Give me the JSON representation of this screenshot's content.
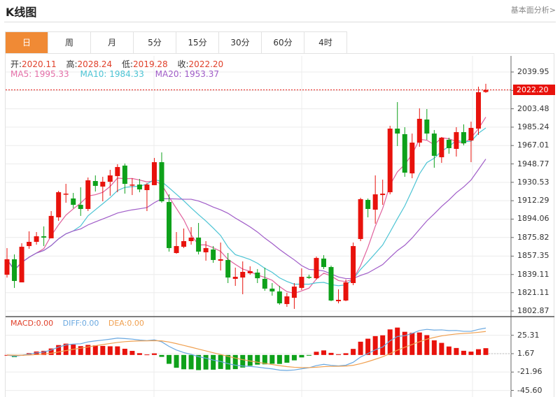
{
  "header": {
    "title": "K线图",
    "link": "基本面分析>"
  },
  "tabs": [
    {
      "label": "日",
      "active": true
    },
    {
      "label": "周"
    },
    {
      "label": "月"
    },
    {
      "label": "5分"
    },
    {
      "label": "15分"
    },
    {
      "label": "30分"
    },
    {
      "label": "60分"
    },
    {
      "label": "4时"
    }
  ],
  "ohlc_info": {
    "open_label": "开:",
    "open": "2020.11",
    "high_label": "高:",
    "high": "2028.24",
    "low_label": "低:",
    "low": "2019.28",
    "close_label": "收:",
    "close": "2022.20"
  },
  "ma_info": {
    "ma5": "MA5: 1995.33",
    "ma10": "MA10: 1984.33",
    "ma20": "MA20: 1953.37"
  },
  "macd_info": {
    "macd": "MACD:0.00",
    "diff": "DIFF:0.00",
    "dea": "DEA:0.00"
  },
  "colors": {
    "accent": "#f08a35",
    "up": "#e8120c",
    "down": "#0ea11a",
    "ma5": "#e0609c",
    "ma10": "#4cc4d4",
    "ma20": "#a05cc8",
    "diff": "#6aa8e0",
    "dea": "#f0a050"
  },
  "chart_data": {
    "type": "candlestick",
    "price_axis_ticks": [
      "2039.95",
      "2021.71",
      "2003.48",
      "1985.24",
      "1967.01",
      "1948.77",
      "1930.53",
      "1912.29",
      "1894.06",
      "1875.82",
      "1857.35",
      "1839.11",
      "1821.11",
      "1802.87"
    ],
    "current_price": "2022.20",
    "macd_axis_ticks": [
      "25.31",
      "1.67",
      "-21.96",
      "-45.60"
    ],
    "ylim": [
      1802.87,
      2039.95
    ],
    "macd_ylim": [
      -45.6,
      25.31
    ],
    "ohlc": [
      [
        1838.9,
        1865.3,
        1836.1,
        1854.2
      ],
      [
        1854.2,
        1859.0,
        1825.8,
        1832.7
      ],
      [
        1831.3,
        1870.1,
        1831.3,
        1866.6
      ],
      [
        1867.3,
        1881.9,
        1864.6,
        1871.5
      ],
      [
        1871.5,
        1881.2,
        1868.7,
        1877.0
      ],
      [
        1877.0,
        1886.8,
        1867.3,
        1875.7
      ],
      [
        1875.0,
        1902.0,
        1875.0,
        1897.2
      ],
      [
        1895.8,
        1922.1,
        1892.3,
        1920.7
      ],
      [
        1918.6,
        1929.0,
        1910.3,
        1919.3
      ],
      [
        1914.5,
        1920.0,
        1904.8,
        1908.2
      ],
      [
        1908.2,
        1925.6,
        1897.2,
        1904.1
      ],
      [
        1904.1,
        1935.3,
        1902.0,
        1932.5
      ],
      [
        1931.8,
        1937.4,
        1921.4,
        1927.0
      ],
      [
        1926.3,
        1936.0,
        1911.7,
        1931.1
      ],
      [
        1931.1,
        1942.9,
        1917.2,
        1937.4
      ],
      [
        1936.7,
        1948.5,
        1920.7,
        1945.7
      ],
      [
        1947.1,
        1949.2,
        1919.3,
        1929.0
      ],
      [
        1927.7,
        1934.6,
        1917.9,
        1928.3
      ],
      [
        1928.3,
        1933.9,
        1920.7,
        1923.5
      ],
      [
        1922.8,
        1929.7,
        1902.0,
        1928.3
      ],
      [
        1927.7,
        1954.7,
        1927.7,
        1950.5
      ],
      [
        1950.5,
        1960.2,
        1910.3,
        1911.7
      ],
      [
        1911.0,
        1918.6,
        1861.8,
        1865.3
      ],
      [
        1860.4,
        1881.2,
        1859.7,
        1867.3
      ],
      [
        1866.6,
        1884.7,
        1865.3,
        1872.2
      ],
      [
        1872.2,
        1886.1,
        1868.7,
        1875.7
      ],
      [
        1875.7,
        1890.2,
        1859.0,
        1861.8
      ],
      [
        1861.1,
        1872.2,
        1852.8,
        1865.3
      ],
      [
        1863.9,
        1867.3,
        1850.7,
        1853.5
      ],
      [
        1852.8,
        1870.8,
        1843.1,
        1854.2
      ],
      [
        1853.5,
        1860.4,
        1830.6,
        1836.1
      ],
      [
        1834.8,
        1845.9,
        1827.8,
        1836.8
      ],
      [
        1836.1,
        1852.1,
        1819.5,
        1841.7
      ],
      [
        1840.3,
        1847.2,
        1838.9,
        1842.4
      ],
      [
        1841.0,
        1844.5,
        1830.6,
        1835.4
      ],
      [
        1834.8,
        1845.9,
        1823.0,
        1825.1
      ],
      [
        1825.1,
        1830.6,
        1818.1,
        1822.3
      ],
      [
        1822.3,
        1827.8,
        1809.1,
        1810.5
      ],
      [
        1809.8,
        1820.9,
        1807.0,
        1817.4
      ],
      [
        1816.0,
        1830.6,
        1805.0,
        1827.1
      ],
      [
        1825.8,
        1845.2,
        1823.7,
        1836.8
      ],
      [
        1836.8,
        1838.9,
        1834.8,
        1836.1
      ],
      [
        1835.4,
        1856.9,
        1834.1,
        1855.5
      ],
      [
        1854.9,
        1858.3,
        1844.5,
        1846.5
      ],
      [
        1846.5,
        1847.9,
        1812.6,
        1813.3
      ],
      [
        1812.6,
        1824.4,
        1810.5,
        1814.0
      ],
      [
        1813.3,
        1834.1,
        1812.6,
        1831.3
      ],
      [
        1830.6,
        1870.8,
        1828.5,
        1867.3
      ],
      [
        1874.3,
        1915.2,
        1872.2,
        1913.8
      ],
      [
        1913.1,
        1914.5,
        1895.8,
        1904.1
      ],
      [
        1903.4,
        1937.4,
        1889.5,
        1918.6
      ],
      [
        1917.9,
        1933.2,
        1908.2,
        1919.3
      ],
      [
        1920.7,
        1986.6,
        1918.6,
        1983.8
      ],
      [
        1983.8,
        2010.1,
        1966.5,
        1978.9
      ],
      [
        1978.3,
        1985.2,
        1936.0,
        1940.1
      ],
      [
        1939.4,
        1978.9,
        1934.6,
        1969.9
      ],
      [
        1969.9,
        2003.9,
        1965.8,
        1993.5
      ],
      [
        1992.8,
        2003.2,
        1972.7,
        1978.9
      ],
      [
        1978.9,
        1982.4,
        1945.0,
        1956.8
      ],
      [
        1955.4,
        1975.5,
        1949.8,
        1974.8
      ],
      [
        1972.7,
        1974.8,
        1958.9,
        1964.4
      ],
      [
        1963.7,
        1985.2,
        1956.1,
        1980.3
      ],
      [
        1980.3,
        1988.0,
        1967.2,
        1969.2
      ],
      [
        1972.0,
        1990.7,
        1950.5,
        1984.5
      ],
      [
        1983.8,
        2025.4,
        1977.6,
        2019.9
      ],
      [
        2020.11,
        2028.24,
        2019.28,
        2022.2
      ]
    ]
  }
}
